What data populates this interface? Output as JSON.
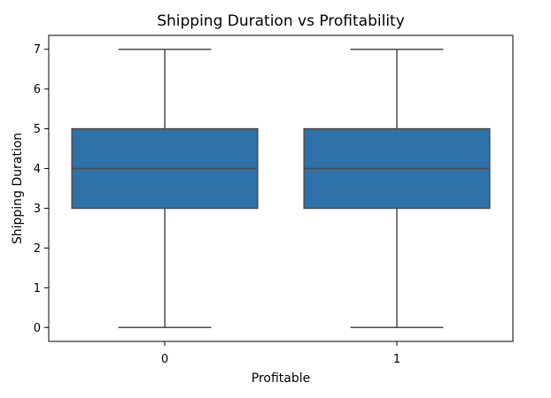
{
  "chart_data": {
    "type": "box",
    "title": "Shipping Duration vs Profitability",
    "xlabel": "Profitable",
    "ylabel": "Shipping Duration",
    "categories": [
      "0",
      "1"
    ],
    "boxes": [
      {
        "category": "0",
        "min": 0,
        "q1": 3,
        "median": 4,
        "q3": 5,
        "max": 7
      },
      {
        "category": "1",
        "min": 0,
        "q1": 3,
        "median": 4,
        "q3": 5,
        "max": 7
      }
    ],
    "ylim": [
      -0.35,
      7.35
    ],
    "yticks": [
      0,
      1,
      2,
      3,
      4,
      5,
      6,
      7
    ],
    "box_color": "#2e72aa",
    "line_color": "#4a4a4a",
    "grid": false,
    "legend": "none"
  }
}
